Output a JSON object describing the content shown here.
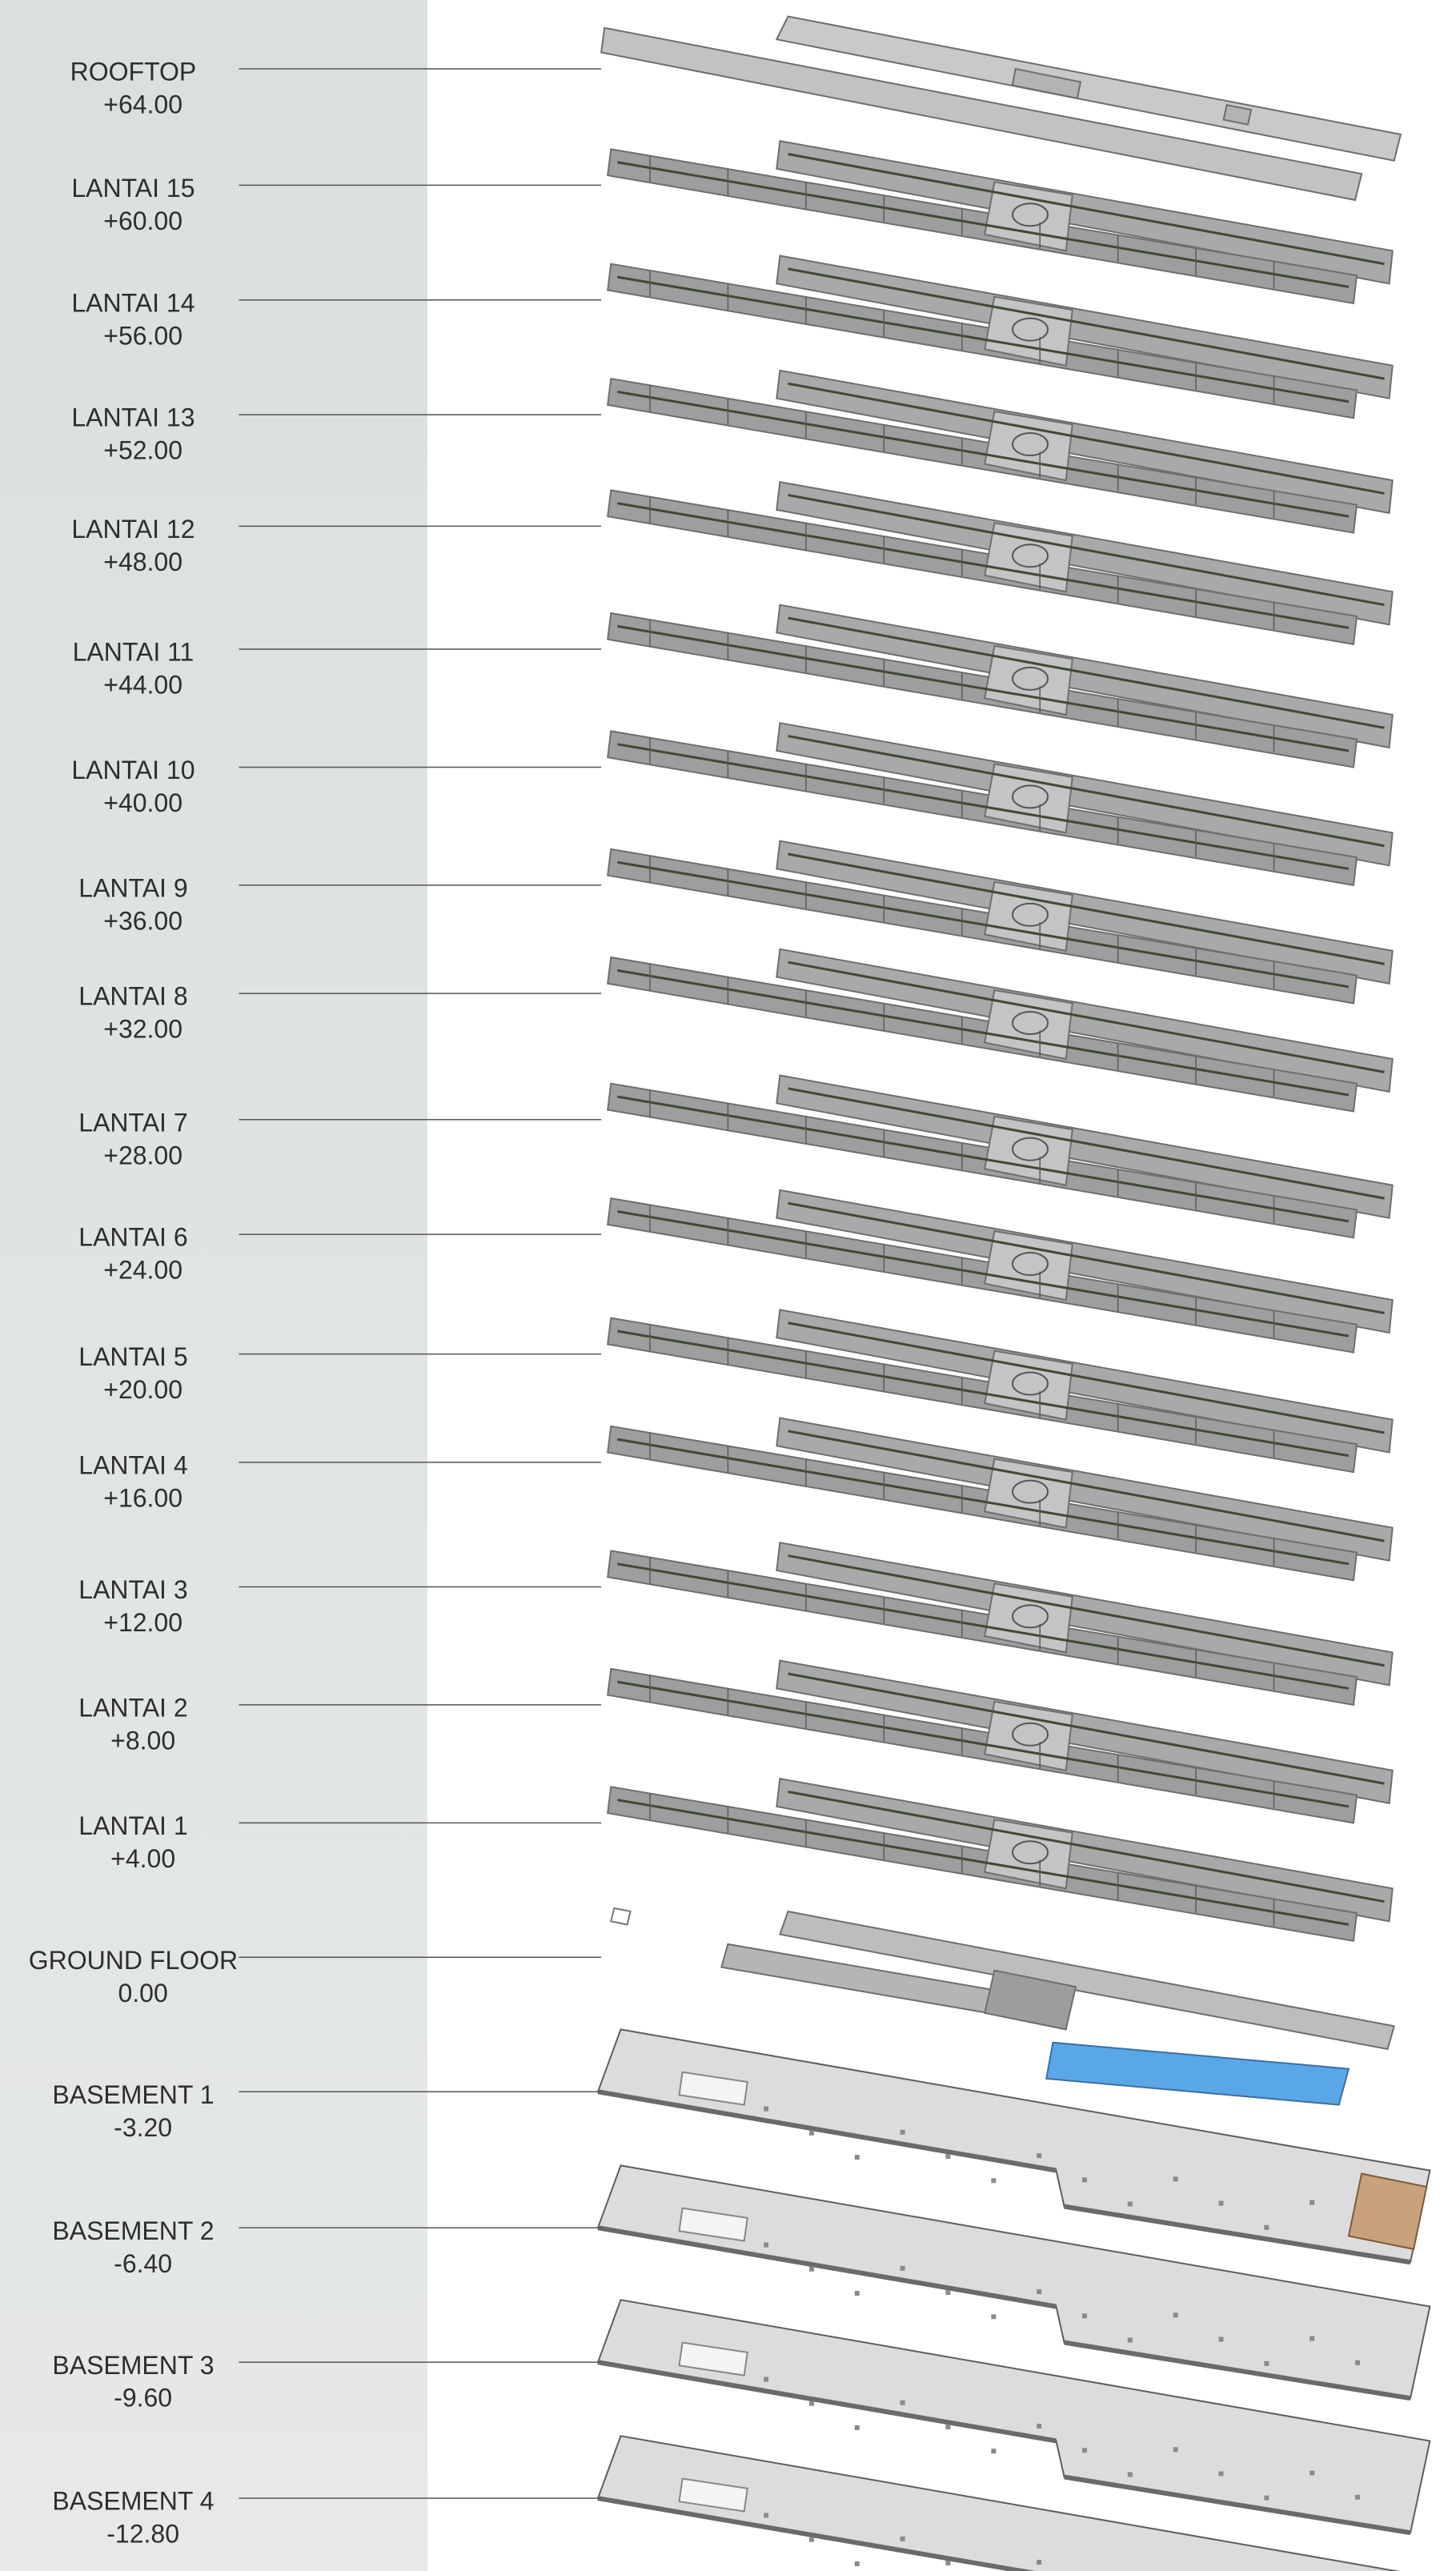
{
  "levels": [
    {
      "name": "ROOFTOP",
      "elevation": "+64.00"
    },
    {
      "name": "LANTAI 15",
      "elevation": "+60.00"
    },
    {
      "name": "LANTAI 14",
      "elevation": "+56.00"
    },
    {
      "name": "LANTAI 13",
      "elevation": "+52.00"
    },
    {
      "name": "LANTAI 12",
      "elevation": "+48.00"
    },
    {
      "name": "LANTAI 11",
      "elevation": "+44.00"
    },
    {
      "name": "LANTAI 10",
      "elevation": "+40.00"
    },
    {
      "name": "LANTAI 9",
      "elevation": "+36.00"
    },
    {
      "name": "LANTAI 8",
      "elevation": "+32.00"
    },
    {
      "name": "LANTAI 7",
      "elevation": "+28.00"
    },
    {
      "name": "LANTAI 6",
      "elevation": "+24.00"
    },
    {
      "name": "LANTAI 5",
      "elevation": "+20.00"
    },
    {
      "name": "LANTAI 4",
      "elevation": "+16.00"
    },
    {
      "name": "LANTAI 3",
      "elevation": "+12.00"
    },
    {
      "name": "LANTAI 2",
      "elevation": "+8.00"
    },
    {
      "name": "LANTAI 1",
      "elevation": "+4.00"
    },
    {
      "name": "GROUND FLOOR",
      "elevation": "0.00"
    },
    {
      "name": "BASEMENT 1",
      "elevation": "-3.20"
    },
    {
      "name": "BASEMENT 2",
      "elevation": "-6.40"
    },
    {
      "name": "BASEMENT 3",
      "elevation": "-9.60"
    },
    {
      "name": "BASEMENT 4",
      "elevation": "-12.80"
    }
  ]
}
